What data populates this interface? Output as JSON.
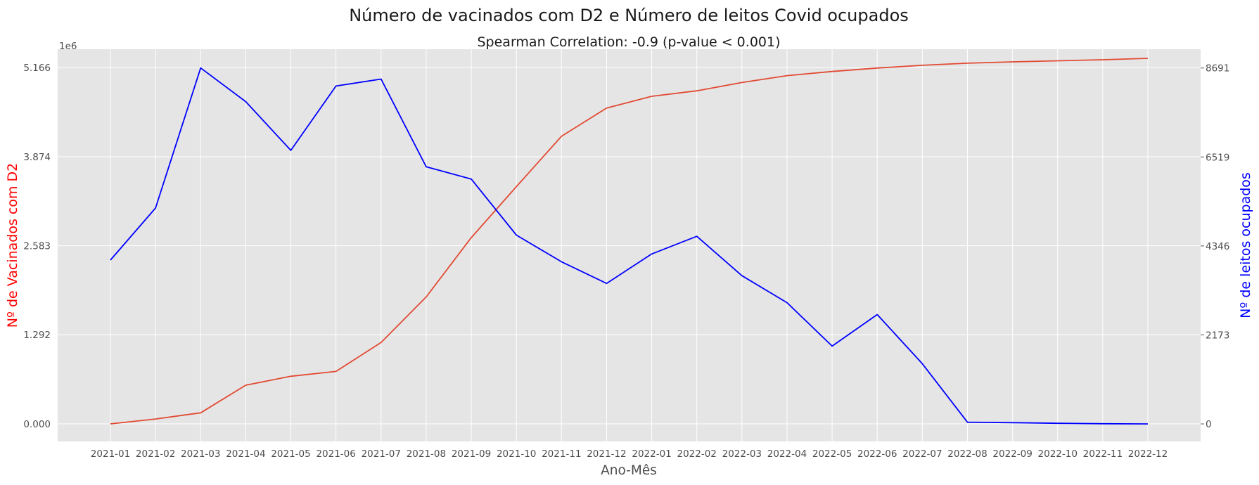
{
  "chart_data": {
    "type": "line",
    "title": "Número de vacinados com D2 e Número de leitos Covid ocupados",
    "subtitle": "Spearman Correlation: -0.9 (p-value < 0.001)",
    "xlabel": "Ano-Mês",
    "ylabel_left": "Nº de Vacinados com D2",
    "ylabel_right": "Nº de leitos ocupados",
    "left_axis_offset": "1e6",
    "categories": [
      "2021-01",
      "2021-02",
      "2021-03",
      "2021-04",
      "2021-05",
      "2021-06",
      "2021-07",
      "2021-08",
      "2021-09",
      "2021-10",
      "2021-11",
      "2021-12",
      "2022-01",
      "2022-02",
      "2022-03",
      "2022-04",
      "2022-05",
      "2022-06",
      "2022-07",
      "2022-08",
      "2022-09",
      "2022-10",
      "2022-11",
      "2022-12"
    ],
    "left_ticks": [
      "0.000",
      "1.292",
      "2.583",
      "3.874",
      "5.166"
    ],
    "right_ticks": [
      "0",
      "2173",
      "4346",
      "6519",
      "8691"
    ],
    "left_ylim": [
      -0.255,
      5.433
    ],
    "right_ylim": [
      -428,
      9150
    ],
    "grid": true,
    "series": [
      {
        "axis": "left",
        "color": "#e24a33",
        "values": [
          0.0,
          0.07,
          0.16,
          0.56,
          0.69,
          0.76,
          1.18,
          1.84,
          2.7,
          3.44,
          4.17,
          4.58,
          4.75,
          4.83,
          4.95,
          5.05,
          5.11,
          5.16,
          5.2,
          5.23,
          5.25,
          5.265,
          5.28,
          5.3
        ]
      },
      {
        "axis": "right",
        "color": "#0000ff",
        "values": [
          4000,
          5270,
          8691,
          7870,
          6680,
          8250,
          8420,
          6280,
          5980,
          4610,
          3960,
          3430,
          4150,
          4580,
          3620,
          2960,
          1900,
          2670,
          1470,
          40,
          30,
          15,
          5,
          0
        ]
      }
    ]
  }
}
